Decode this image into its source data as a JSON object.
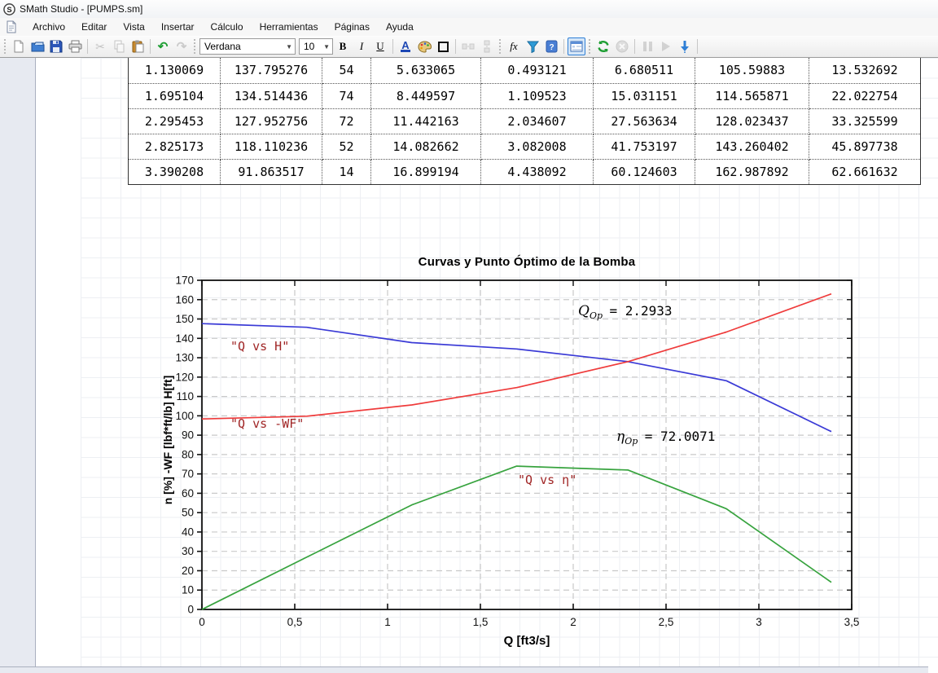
{
  "window": {
    "title": "SMath Studio - [PUMPS.sm]"
  },
  "menu": {
    "items": [
      "Archivo",
      "Editar",
      "Vista",
      "Insertar",
      "Cálculo",
      "Herramientas",
      "Páginas",
      "Ayuda"
    ]
  },
  "toolbar": {
    "font_family_value": "Verdana",
    "font_size_value": "10",
    "bold_label": "B",
    "italic_label": "I",
    "underline_label": "U",
    "font_color_label": "A",
    "function_label": "fx"
  },
  "table": {
    "rows": [
      [
        "1.130069",
        "137.795276",
        "54",
        "5.633065",
        "0.493121",
        "6.680511",
        "105.59883",
        "13.532692"
      ],
      [
        "1.695104",
        "134.514436",
        "74",
        "8.449597",
        "1.109523",
        "15.031151",
        "114.565871",
        "22.022754"
      ],
      [
        "2.295453",
        "127.952756",
        "72",
        "11.442163",
        "2.034607",
        "27.563634",
        "128.023437",
        "33.325599"
      ],
      [
        "2.825173",
        "118.110236",
        "52",
        "14.082662",
        "3.082008",
        "41.753197",
        "143.260402",
        "45.897738"
      ],
      [
        "3.390208",
        "91.863517",
        "14",
        "16.899194",
        "4.438092",
        "60.124603",
        "162.987892",
        "62.661632"
      ]
    ]
  },
  "chart_data": {
    "type": "line",
    "title": "Curvas y Punto Óptimo de la Bomba",
    "xlabel": "Q [ft3/s]",
    "ylabel": "n [%]  -WF [lbf*ft/lb]  H[ft]",
    "xlim": [
      0,
      3.5
    ],
    "ylim": [
      0,
      170
    ],
    "x_tick_step": 0.5,
    "y_tick_step": 10,
    "x_tick_labels": [
      "0",
      "0,5",
      "1",
      "1,5",
      "2",
      "2,5",
      "3",
      "3,5"
    ],
    "grid": true,
    "legend_position": "inline-labels",
    "series": [
      {
        "name": "\"Q vs H\"",
        "color": "#3a3ad6",
        "x": [
          0,
          0.565035,
          1.130069,
          1.695104,
          2.295453,
          2.825173,
          3.390208
        ],
        "y": [
          147.6,
          145.7,
          137.795276,
          134.514436,
          127.952756,
          118.110236,
          91.863517
        ]
      },
      {
        "name": "\"Q vs -WF\"",
        "color": "#ef3b3b",
        "x": [
          0,
          0.565035,
          1.130069,
          1.695104,
          2.295453,
          2.825173,
          3.390208
        ],
        "y": [
          98.4,
          99.8,
          105.59883,
          114.565871,
          128.023437,
          143.260402,
          162.987892
        ]
      },
      {
        "name": "\"Q vs η\"",
        "color": "#37a33e",
        "x": [
          0,
          0.565035,
          1.130069,
          1.695104,
          2.295453,
          2.825173,
          3.390208
        ],
        "y": [
          0,
          27,
          54,
          74,
          72,
          52,
          14
        ]
      }
    ],
    "annotations": [
      {
        "variable": "Q",
        "subscript": "Op",
        "rhs": "= 2.2933"
      },
      {
        "variable": "η",
        "subscript": "Op",
        "rhs": "= 72.0071"
      }
    ]
  }
}
